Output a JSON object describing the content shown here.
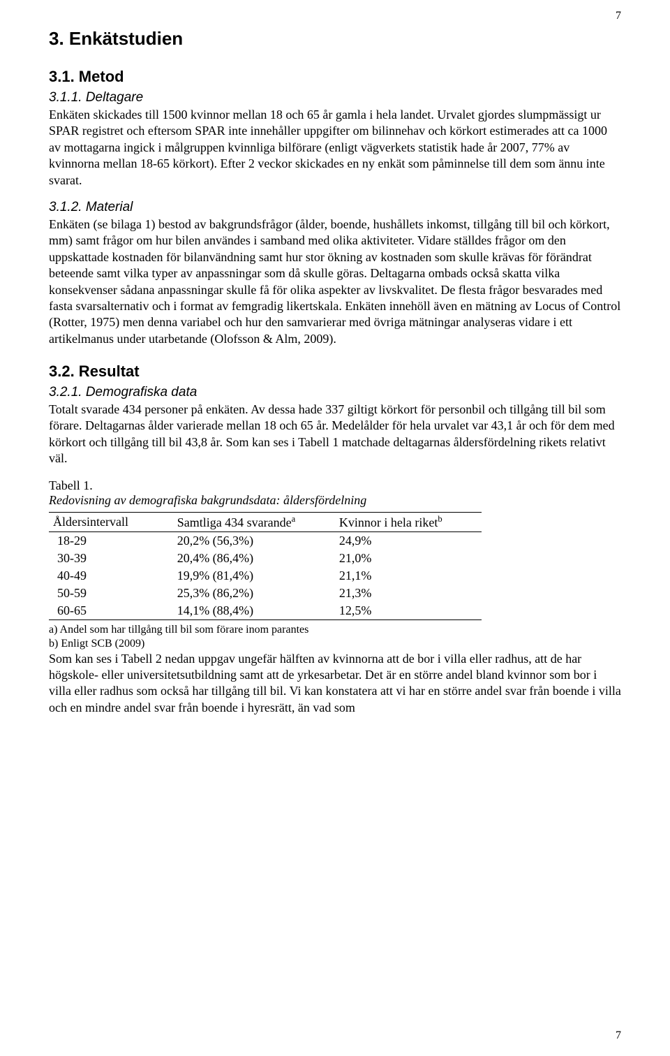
{
  "pageNumberTop": "7",
  "pageNumberBottom": "7",
  "h1": "3. Enkätstudien",
  "s31": {
    "title": "3.1. Metod",
    "s311": {
      "title": "3.1.1. Deltagare",
      "body": "Enkäten skickades till 1500 kvinnor mellan 18 och 65 år gamla i hela landet. Urvalet gjordes slumpmässigt ur SPAR registret och eftersom SPAR inte innehåller uppgifter om bilinnehav och körkort estimerades att ca 1000 av mottagarna ingick i målgruppen kvinnliga bilförare (enligt vägverkets statistik hade år 2007, 77% av kvinnorna mellan 18-65 körkort). Efter 2 veckor skickades en ny enkät som påminnelse till dem som ännu inte svarat."
    },
    "s312": {
      "title": "3.1.2. Material",
      "body": "Enkäten (se bilaga 1) bestod av bakgrundsfrågor (ålder, boende, hushållets inkomst, tillgång till bil och körkort, mm) samt frågor om hur bilen användes i samband med olika aktiviteter. Vidare ställdes frågor om den uppskattade kostnaden för bilanvändning samt hur stor ökning av kostnaden som skulle krävas för förändrat beteende samt vilka typer av anpassningar som då skulle göras. Deltagarna ombads också skatta vilka konsekvenser sådana anpassningar skulle få för olika aspekter av livskvalitet. De flesta frågor besvarades med fasta svarsalternativ och i format av femgradig likertskala. Enkäten innehöll även en mätning av Locus of Control (Rotter, 1975) men denna variabel och hur den samvarierar med övriga mätningar analyseras vidare i ett artikelmanus under utarbetande (Olofsson & Alm, 2009)."
    }
  },
  "s32": {
    "title": "3.2. Resultat",
    "s321": {
      "title": "3.2.1. Demografiska data",
      "body": "Totalt svarade 434 personer på enkäten. Av dessa hade 337 giltigt körkort för personbil och tillgång till bil som förare. Deltagarnas ålder varierade mellan 18 och 65 år. Medelålder för hela urvalet var 43,1 år och för dem med körkort och tillgång till bil 43,8 år. Som kan ses i Tabell 1 matchade deltagarnas åldersfördelning rikets relativt väl."
    }
  },
  "table1": {
    "label": "Tabell 1.",
    "caption": "Redovisning av demografiska bakgrundsdata: åldersfördelning",
    "headers": {
      "c1": "Åldersintervall",
      "c2_main": "Samtliga 434 svarande",
      "c2_sup": "a",
      "c3_main": "Kvinnor i hela riket",
      "c3_sup": "b"
    },
    "rows": [
      {
        "c1": "18-29",
        "c2": "20,2% (56,3%)",
        "c3": "24,9%"
      },
      {
        "c1": "30-39",
        "c2": "20,4% (86,4%)",
        "c3": "21,0%"
      },
      {
        "c1": "40-49",
        "c2": "19,9% (81,4%)",
        "c3": "21,1%"
      },
      {
        "c1": "50-59",
        "c2": "25,3% (86,2%)",
        "c3": "21,3%"
      },
      {
        "c1": "60-65",
        "c2": "14,1% (88,4%)",
        "c3": "12,5%"
      }
    ],
    "note_a": "a) Andel som har tillgång till bil som förare inom parantes",
    "note_b": "b) Enligt SCB (2009)"
  },
  "closing_para": "Som kan ses i Tabell 2 nedan uppgav ungefär hälften av kvinnorna att de bor i villa eller radhus, att de har högskole- eller universitetsutbildning samt att de yrkesarbetar. Det är en större andel bland kvinnor som bor i villa eller radhus som också har tillgång till bil. Vi kan konstatera att vi har en större andel svar från boende i villa och en mindre andel svar från boende i hyresrätt, än vad som"
}
